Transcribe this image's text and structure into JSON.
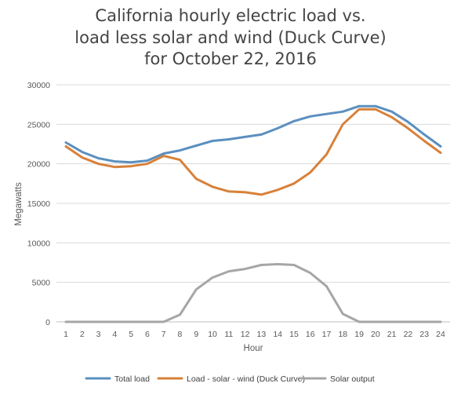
{
  "chart_data": {
    "type": "line",
    "title_lines": [
      "California hourly electric load vs.",
      "load less solar and wind (Duck Curve)",
      "for October 22, 2016"
    ],
    "xlabel": "Hour",
    "ylabel": "Megawatts",
    "ylim": [
      0,
      30000
    ],
    "y_ticks": [
      "0",
      "5000",
      "10000",
      "15000",
      "20000",
      "25000",
      "30000"
    ],
    "x": [
      "1",
      "2",
      "3",
      "4",
      "5",
      "6",
      "7",
      "8",
      "9",
      "10",
      "11",
      "12",
      "13",
      "14",
      "15",
      "16",
      "17",
      "18",
      "19",
      "20",
      "21",
      "22",
      "23",
      "24"
    ],
    "grid": true,
    "legend_position": "bottom",
    "series": [
      {
        "name": "Total load",
        "color": "#5b8fbf",
        "values": [
          22700,
          21500,
          20700,
          20300,
          20200,
          20400,
          21300,
          21700,
          22300,
          22900,
          23100,
          23400,
          23700,
          24500,
          25400,
          26000,
          26300,
          26600,
          27300,
          27300,
          26600,
          25300,
          23700,
          22200
        ]
      },
      {
        "name": "Load - solar - wind (Duck Curve)",
        "color": "#d7813a",
        "values": [
          22200,
          20800,
          20000,
          19600,
          19700,
          20000,
          21000,
          20500,
          18100,
          17100,
          16500,
          16400,
          16100,
          16700,
          17500,
          18900,
          21200,
          25000,
          26900,
          26900,
          25900,
          24500,
          22900,
          21400
        ]
      },
      {
        "name": "Solar output",
        "color": "#a6a6a6",
        "values": [
          0,
          0,
          0,
          0,
          0,
          0,
          0,
          900,
          4100,
          5600,
          6400,
          6700,
          7200,
          7300,
          7200,
          6200,
          4500,
          1000,
          0,
          0,
          0,
          0,
          0,
          0
        ]
      }
    ]
  }
}
